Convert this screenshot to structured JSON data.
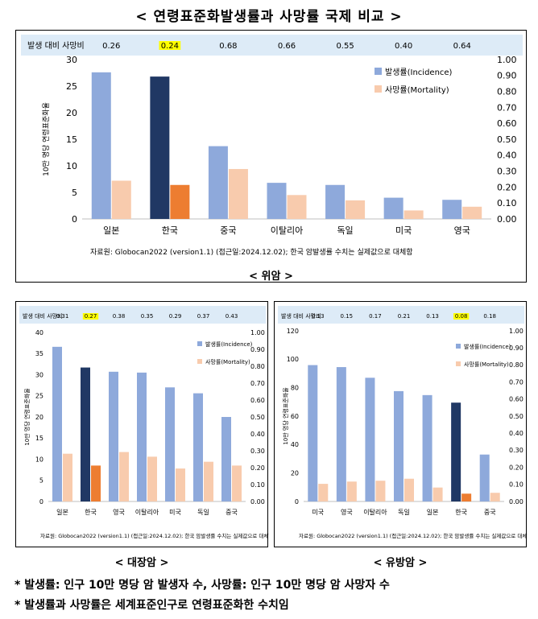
{
  "page_title": "< 연령표준화발생률과 사망률 국제 비교 >",
  "legend": {
    "incidence": "발생률(Incidence)",
    "mortality": "사망률(Mortality)"
  },
  "ratio_label": "발생 대비 사망비",
  "y_left_label": "10만 명당 연령표준화율",
  "source": "자료원: Globocan2022 (version1.1) (접근일:2024.12.02); 한국 암발생률 수치는 실제값으로 대체함",
  "colors": {
    "incidence": "#8EA9DB",
    "incidence_korea": "#203864",
    "mortality": "#F8CBAD",
    "mortality_korea": "#ED7D31",
    "ratio_band": "#DDEBF7",
    "ratio_highlight": "#FFFF00"
  },
  "charts": [
    {
      "caption": "< 위암 >",
      "chart_data": {
        "type": "bar",
        "categories": [
          "일본",
          "한국",
          "중국",
          "이탈리아",
          "독일",
          "미국",
          "영국"
        ],
        "series": [
          {
            "name": "발생률(Incidence)",
            "values": [
              27.6,
              26.8,
              13.7,
              6.8,
              6.4,
              4.0,
              3.6
            ]
          },
          {
            "name": "사망률(Mortality)",
            "values": [
              7.2,
              6.4,
              9.4,
              4.5,
              3.5,
              1.6,
              2.3
            ]
          }
        ],
        "ratios": [
          "0.26",
          "0.24",
          "0.68",
          "0.66",
          "0.55",
          "0.40",
          "0.64"
        ],
        "highlight_index": 1,
        "ylim": [
          0,
          30
        ],
        "yticks": [
          0,
          5,
          10,
          15,
          20,
          25,
          30
        ],
        "y2ticks": [
          "0.00",
          "0.10",
          "0.20",
          "0.30",
          "0.40",
          "0.50",
          "0.60",
          "0.70",
          "0.80",
          "0.90",
          "1.00"
        ]
      }
    },
    {
      "caption": "< 대장암 >",
      "chart_data": {
        "type": "bar",
        "categories": [
          "일본",
          "한국",
          "영국",
          "이탈리아",
          "미국",
          "독일",
          "중국"
        ],
        "series": [
          {
            "name": "발생률(Incidence)",
            "values": [
              36.6,
              31.7,
              30.7,
              30.5,
              27.0,
              25.6,
              20.0
            ]
          },
          {
            "name": "사망률(Mortality)",
            "values": [
              11.3,
              8.5,
              11.7,
              10.6,
              7.8,
              9.4,
              8.5
            ]
          }
        ],
        "ratios": [
          "0.31",
          "0.27",
          "0.38",
          "0.35",
          "0.29",
          "0.37",
          "0.43"
        ],
        "highlight_index": 1,
        "ylim": [
          0,
          40
        ],
        "yticks": [
          0,
          5,
          10,
          15,
          20,
          25,
          30,
          35,
          40
        ],
        "y2ticks": [
          "0.00",
          "0.10",
          "0.20",
          "0.30",
          "0.40",
          "0.50",
          "0.60",
          "0.70",
          "0.80",
          "0.90",
          "1.00"
        ]
      }
    },
    {
      "caption": "< 유방암 >",
      "chart_data": {
        "type": "bar",
        "categories": [
          "미국",
          "영국",
          "이탈리아",
          "독일",
          "일본",
          "한국",
          "중국"
        ],
        "series": [
          {
            "name": "발생률(Incidence)",
            "values": [
              95.9,
              94.5,
              87.0,
              77.6,
              74.8,
              69.5,
              33.0
            ]
          },
          {
            "name": "사망률(Mortality)",
            "values": [
              12.4,
              14.0,
              14.6,
              16.0,
              9.8,
              5.5,
              6.1
            ]
          }
        ],
        "ratios": [
          "0.13",
          "0.15",
          "0.17",
          "0.21",
          "0.13",
          "0.08",
          "0.18"
        ],
        "highlight_index": 5,
        "ylim": [
          0,
          120
        ],
        "yticks": [
          0,
          20,
          40,
          60,
          80,
          100,
          120
        ],
        "y2ticks": [
          "0.00",
          "0.10",
          "0.20",
          "0.30",
          "0.40",
          "0.50",
          "0.60",
          "0.70",
          "0.80",
          "0.90",
          "1.00"
        ]
      }
    }
  ],
  "footnotes": [
    "* 발생률: 인구 10만 명당 암 발생자 수, 사망률: 인구 10만 명당 암 사망자 수",
    "* 발생률과 사망률은 세계표준인구로 연령표준화한 수치임"
  ]
}
